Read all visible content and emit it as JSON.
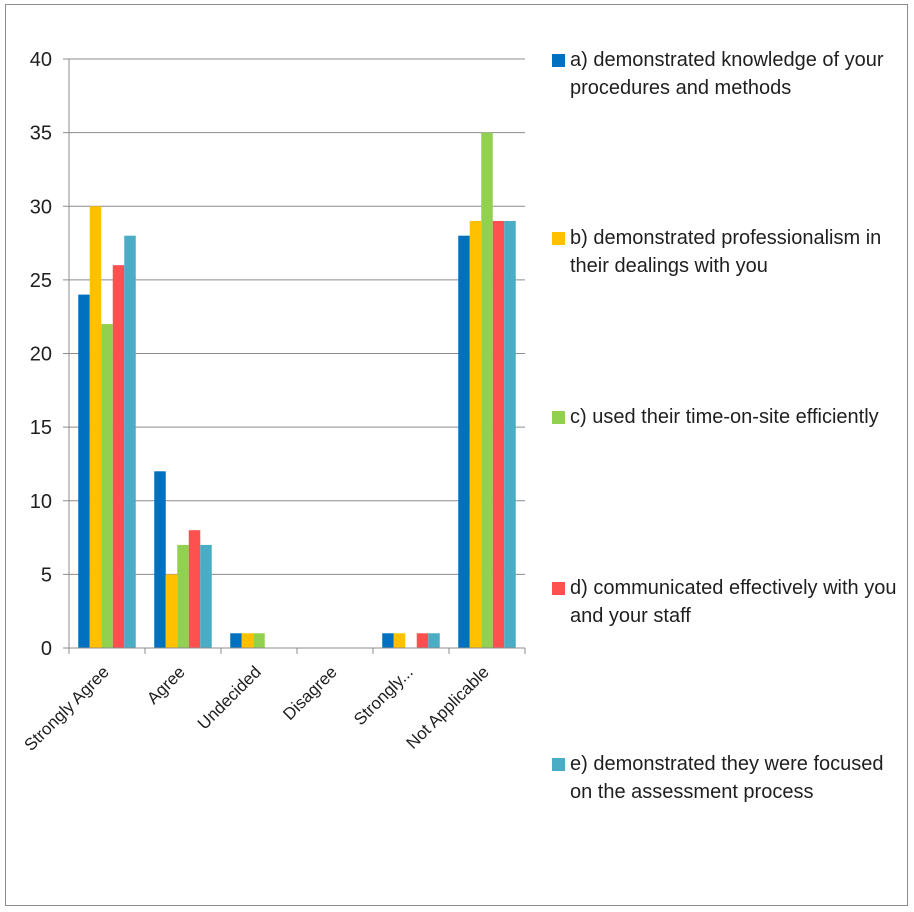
{
  "chart_data": {
    "type": "bar",
    "categories": [
      "Strongly Agree",
      "Agree",
      "Undecided",
      "Disagree",
      "Strongly...",
      "Not Applicable"
    ],
    "series": [
      {
        "name": "a) demonstrated knowledge of your procedures and methods",
        "color": "#0070c0",
        "values": [
          24,
          12,
          1,
          0,
          1,
          28
        ]
      },
      {
        "name": "b) demonstrated professionalism in their dealings with you",
        "color": "#ffc000",
        "values": [
          30,
          5,
          1,
          0,
          1,
          29
        ]
      },
      {
        "name": "c) used their time-on-site efficiently",
        "color": "#92d050",
        "values": [
          22,
          7,
          1,
          0,
          0,
          35
        ]
      },
      {
        "name": "d) communicated effectively with you and your staff",
        "color": "#ff5050",
        "values": [
          26,
          8,
          0,
          0,
          1,
          29
        ]
      },
      {
        "name": "e) demonstrated they were focused on the assessment process",
        "color": "#4bacc6",
        "values": [
          28,
          7,
          0,
          0,
          1,
          29
        ]
      }
    ],
    "y_ticks": [
      "0",
      "5",
      "10",
      "15",
      "20",
      "25",
      "30",
      "35",
      "40"
    ],
    "ylim": [
      0,
      40
    ],
    "grid": true,
    "legend_position": "right"
  }
}
